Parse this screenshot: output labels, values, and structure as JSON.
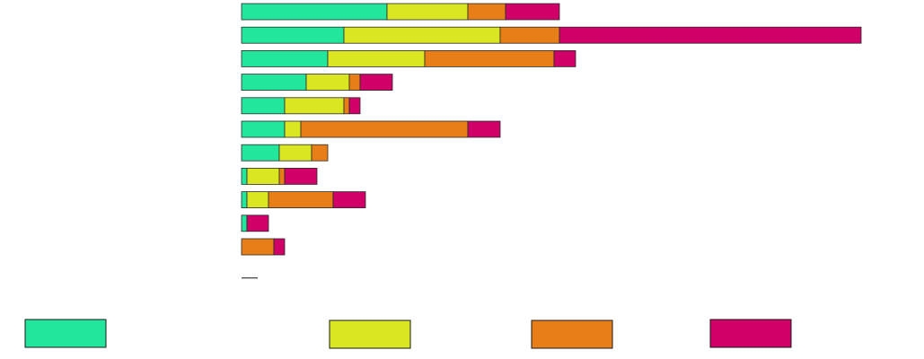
{
  "chart_data": {
    "type": "bar",
    "orientation": "horizontal",
    "stacked": true,
    "title": "",
    "xlabel": "",
    "ylabel": "",
    "categories": [
      "",
      "",
      "",
      "",
      "",
      "",
      "",
      "",
      "",
      "",
      "",
      ""
    ],
    "series": [
      {
        "color": "#22e69c",
        "values": [
          27,
          19,
          16,
          12,
          8,
          8,
          7,
          1,
          1,
          1,
          0,
          0
        ]
      },
      {
        "color": "#dbe622",
        "values": [
          15,
          29,
          18,
          8,
          11,
          3,
          6,
          6,
          4,
          0,
          0,
          0
        ]
      },
      {
        "color": "#e87e18",
        "values": [
          7,
          11,
          24,
          2,
          1,
          31,
          3,
          1,
          12,
          0,
          6,
          0
        ]
      },
      {
        "color": "#d10069",
        "values": [
          10,
          56,
          4,
          6,
          2,
          6,
          0,
          6,
          6,
          4,
          2,
          0
        ]
      }
    ],
    "xlim": [
      0,
      120
    ],
    "grid": false,
    "legend": {
      "placement": "bottom"
    }
  }
}
